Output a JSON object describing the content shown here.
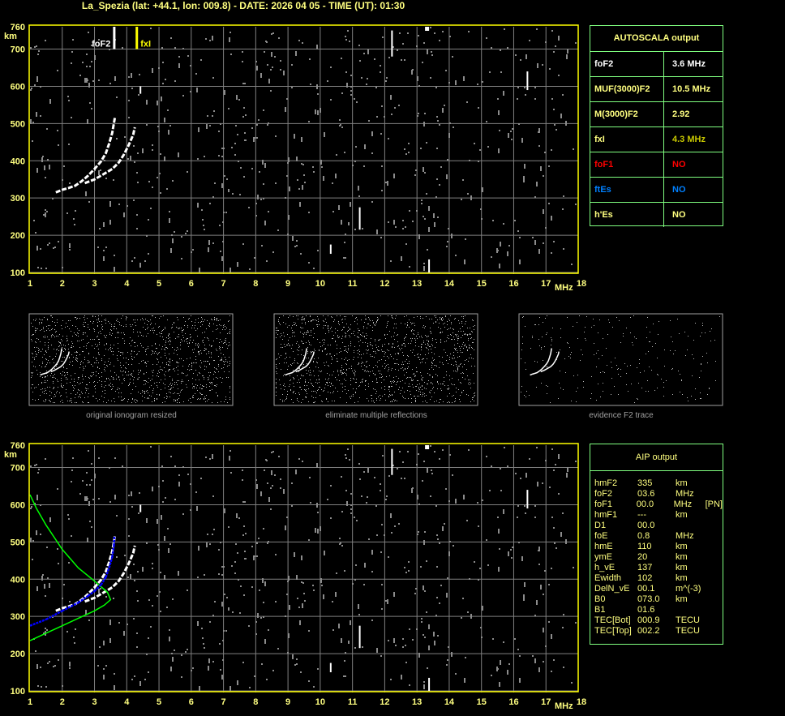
{
  "title": "La_Spezia (lat: +44.1, lon: 009.8) - DATE: 2026 04 05 - TIME (UT): 01:30",
  "colors": {
    "axis": "#ffff00",
    "grid": "#808080",
    "trace": "#ffffff",
    "fit": "#0000ff",
    "profile": "#00ff00",
    "panel_border": "#80ff80"
  },
  "chart_data": [
    {
      "type": "scatter",
      "name_hint": "ionogram-top",
      "xlabel": "MHz",
      "ylabel": "km",
      "xlim": [
        1,
        18
      ],
      "ylim": [
        100,
        760
      ],
      "xticks": [
        "1",
        "2",
        "3",
        "4",
        "5",
        "6",
        "7",
        "8",
        "9",
        "10",
        "11",
        "12",
        "13",
        "14",
        "15",
        "16",
        "17",
        "18"
      ],
      "yticks": [
        "100",
        "200",
        "300",
        "400",
        "500",
        "600",
        "700",
        "760"
      ],
      "grid": true,
      "markers": [
        {
          "label": "foF2",
          "freq": 3.6,
          "color": "#ffffff"
        },
        {
          "label": "fxI",
          "freq": 4.3,
          "color": "#ffff00"
        }
      ],
      "o_trace": [
        [
          1.8,
          315
        ],
        [
          2.0,
          322
        ],
        [
          2.2,
          327
        ],
        [
          2.4,
          333
        ],
        [
          2.6,
          345
        ],
        [
          2.8,
          360
        ],
        [
          3.0,
          378
        ],
        [
          3.2,
          398
        ],
        [
          3.35,
          420
        ],
        [
          3.45,
          445
        ],
        [
          3.55,
          475
        ],
        [
          3.6,
          500
        ],
        [
          3.63,
          515
        ]
      ],
      "x_trace": [
        [
          2.7,
          340
        ],
        [
          3.0,
          350
        ],
        [
          3.3,
          365
        ],
        [
          3.55,
          378
        ],
        [
          3.75,
          395
        ],
        [
          3.9,
          415
        ],
        [
          4.05,
          440
        ],
        [
          4.2,
          470
        ],
        [
          4.25,
          490
        ]
      ]
    },
    {
      "type": "line",
      "name_hint": "ionogram-bottom",
      "xlabel": "MHz",
      "ylabel": "km",
      "xlim": [
        1,
        18
      ],
      "ylim": [
        100,
        760
      ],
      "grid": true,
      "fit_trace": [
        [
          1.0,
          275
        ],
        [
          1.5,
          292
        ],
        [
          2.0,
          315
        ],
        [
          2.5,
          337
        ],
        [
          2.8,
          355
        ],
        [
          3.0,
          368
        ],
        [
          3.2,
          385
        ],
        [
          3.35,
          405
        ],
        [
          3.45,
          430
        ],
        [
          3.55,
          460
        ],
        [
          3.6,
          490
        ],
        [
          3.62,
          515
        ]
      ],
      "profile": [
        [
          1.0,
          235
        ],
        [
          1.5,
          255
        ],
        [
          2.0,
          275
        ],
        [
          2.5,
          295
        ],
        [
          3.0,
          315
        ],
        [
          3.3,
          330
        ],
        [
          3.5,
          345
        ],
        [
          3.4,
          365
        ],
        [
          3.0,
          395
        ],
        [
          2.5,
          430
        ],
        [
          2.0,
          480
        ],
        [
          1.5,
          545
        ],
        [
          1.2,
          590
        ],
        [
          1.0,
          627
        ]
      ]
    }
  ],
  "thumbnails": [
    {
      "caption": "original ionogram resized"
    },
    {
      "caption": "eliminate multiple reflections"
    },
    {
      "caption": "evidence F2 trace"
    }
  ],
  "autoscala": {
    "header": "AUTOSCALA output",
    "rows": [
      {
        "key": "foF2",
        "value": "3.6 MHz",
        "key_color": "#ffffff",
        "value_color": "#ffffff"
      },
      {
        "key": "MUF(3000)F2",
        "value": "10.5 MHz",
        "key_color": "#ffff80",
        "value_color": "#ffff80"
      },
      {
        "key": "M(3000)F2",
        "value": "2.92",
        "key_color": "#ffff80",
        "value_color": "#ffff80"
      },
      {
        "key": "fxI",
        "value": "4.3 MHz",
        "key_color": "#ffff80",
        "value_color": "#c8c800"
      },
      {
        "key": "foF1",
        "value": "NO",
        "key_color": "#ff0000",
        "value_color": "#ff0000"
      },
      {
        "key": "ftEs",
        "value": "NO",
        "key_color": "#0080ff",
        "value_color": "#0080ff"
      },
      {
        "key": "h'Es",
        "value": "NO",
        "key_color": "#ffff80",
        "value_color": "#ffff80"
      }
    ]
  },
  "aip": {
    "header": "AIP output",
    "rows": [
      [
        "hmF2",
        "335",
        "km",
        ""
      ],
      [
        "foF2",
        "03.6",
        "MHz",
        ""
      ],
      [
        "foF1",
        "00.0",
        "MHz",
        "[PN]"
      ],
      [
        "hmF1",
        "---",
        "km",
        ""
      ],
      [
        "D1",
        "00.0",
        "",
        ""
      ],
      [
        "foE",
        "0.8",
        "MHz",
        ""
      ],
      [
        "hmE",
        "110",
        "km",
        ""
      ],
      [
        "ymE",
        "20",
        "km",
        ""
      ],
      [
        "h_vE",
        "137",
        "km",
        ""
      ],
      [
        "Ewidth",
        "102",
        "km",
        ""
      ],
      [
        "DelN_vE",
        "00.1",
        "m^(-3)",
        ""
      ],
      [
        "B0",
        "073.0",
        "km",
        ""
      ],
      [
        "B1",
        "01.6",
        "",
        ""
      ],
      [
        "TEC[Bot]",
        "000.9",
        "TECU",
        ""
      ],
      [
        "TEC[Top]",
        "002.2",
        "TECU",
        ""
      ]
    ]
  }
}
